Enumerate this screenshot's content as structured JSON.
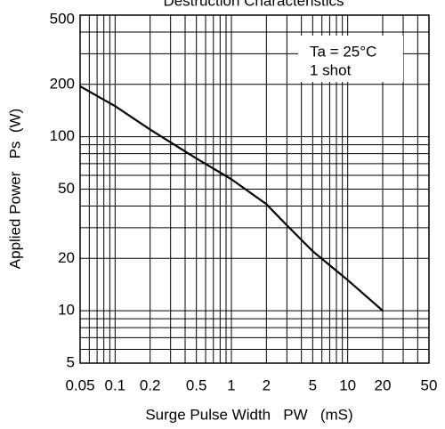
{
  "chart_data": {
    "type": "line",
    "title": "Destruction Characteristics",
    "xlabel": "Surge Pulse Width   PW   (mS)",
    "ylabel": "Applied Power   Ps  (W)",
    "annotations": [
      "Ta = 25°C",
      "1 shot"
    ],
    "xscale": "log",
    "yscale": "log",
    "grid": true,
    "xlim": [
      0.05,
      50
    ],
    "ylim": [
      5,
      500
    ],
    "xticks": [
      0.05,
      0.1,
      0.2,
      0.5,
      1,
      2,
      5,
      10,
      20,
      50
    ],
    "yticks": [
      5,
      10,
      20,
      50,
      100,
      200,
      500
    ],
    "x_minor_ticks": [
      0.06,
      0.07,
      0.08,
      0.09,
      0.3,
      0.4,
      0.6,
      0.7,
      0.8,
      0.9,
      3,
      4,
      6,
      7,
      8,
      9,
      30,
      40
    ],
    "y_minor_ticks": [
      6,
      7,
      8,
      9,
      30,
      40,
      60,
      70,
      80,
      90,
      300,
      400
    ],
    "series": [
      {
        "color": "#000000",
        "x": [
          0.05,
          0.1,
          0.2,
          0.5,
          1,
          2,
          3,
          5,
          10,
          20
        ],
        "values": [
          195,
          150,
          110,
          75,
          57,
          41,
          31,
          22,
          15,
          10
        ]
      }
    ]
  }
}
